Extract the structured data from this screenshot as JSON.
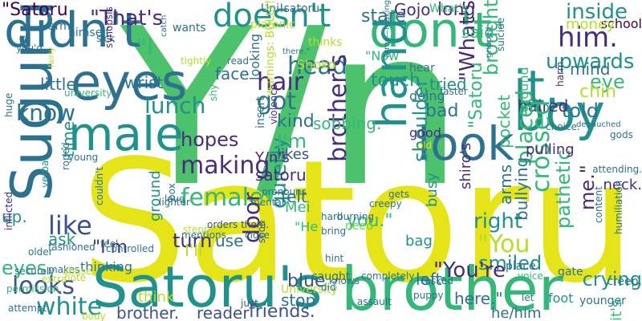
{
  "palette": {
    "background": "#ffffff",
    "yellow": "#e4e419",
    "yellow_green": "#b5de2b",
    "light_green": "#6ece58",
    "green": "#4cc26c",
    "teal_green": "#35b779",
    "teal": "#21918c",
    "blue_teal": "#2c728e",
    "blue": "#3b528b",
    "indigo": "#472d7b",
    "purple": "#440154"
  },
  "words": [
    {
      "text": "Y/n",
      "color": "#4cc26c"
    },
    {
      "text": "Satoru",
      "color": "#e4e419"
    },
    {
      "text": "Satoru's",
      "color": "#21918c"
    },
    {
      "text": "brother",
      "color": "#35b779"
    },
    {
      "text": "didn't",
      "color": "#2c728e"
    },
    {
      "text": "don't",
      "color": "#35b779"
    },
    {
      "text": "doesn't",
      "color": "#21918c"
    },
    {
      "text": "eyes",
      "color": "#2c728e"
    },
    {
      "text": "male",
      "color": "#21918c"
    },
    {
      "text": "boy",
      "color": "#21918c"
    },
    {
      "text": "it.",
      "color": "#21918c"
    },
    {
      "text": "look",
      "color": "#2c728e"
    },
    {
      "text": "hand",
      "color": "#21918c"
    },
    {
      "text": "Suguru",
      "color": "#2c728e"
    },
    {
      "text": "making",
      "color": "#472d7b"
    },
    {
      "text": "female",
      "color": "#35b779"
    },
    {
      "text": "looks",
      "color": "#3b528b"
    },
    {
      "text": "white",
      "color": "#21918c"
    },
    {
      "text": "like",
      "color": "#3b528b"
    },
    {
      "text": "hair",
      "color": "#472d7b"
    },
    {
      "text": "got",
      "color": "#2c728e"
    },
    {
      "text": "head",
      "color": "#2c728e"
    },
    {
      "text": "lunch",
      "color": "#21918c"
    },
    {
      "text": "know",
      "color": "#2c728e"
    },
    {
      "text": "\"That's",
      "color": "#472d7b"
    },
    {
      "text": "\"Satoru",
      "color": "#440154"
    },
    {
      "text": "\"I",
      "color": "#35b779"
    },
    {
      "text": "him.",
      "color": "#472d7b"
    },
    {
      "text": "inside",
      "color": "#21918c"
    },
    {
      "text": "upwards",
      "color": "#21918c"
    },
    {
      "text": "mind",
      "color": "#2c728e"
    },
    {
      "text": "eye",
      "color": "#35b779"
    },
    {
      "text": "chin",
      "color": "#b5de2b"
    },
    {
      "text": "told",
      "color": "#2c728e"
    },
    {
      "text": "haired",
      "color": "#472d7b"
    },
    {
      "text": "\"What's",
      "color": "#472d7b"
    },
    {
      "text": "brought",
      "color": "#35b779"
    },
    {
      "text": "placed",
      "color": "#35b779"
    },
    {
      "text": "shoulder",
      "color": "#21918c"
    },
    {
      "text": "brother's",
      "color": "#472d7b"
    },
    {
      "text": "right",
      "color": "#21918c"
    },
    {
      "text": "\"You",
      "color": "#b5de2b"
    },
    {
      "text": "crossed",
      "color": "#35b779"
    },
    {
      "text": "pathetic",
      "color": "#35b779"
    },
    {
      "text": "me.\"",
      "color": "#472d7b"
    },
    {
      "text": "crying",
      "color": "#21918c"
    },
    {
      "text": "smiled",
      "color": "#21918c"
    },
    {
      "text": "arms",
      "color": "#2c728e"
    },
    {
      "text": "bullying",
      "color": "#2c728e"
    },
    {
      "text": "door",
      "color": "#472d7b"
    },
    {
      "text": "quietly",
      "color": "#21918c"
    },
    {
      "text": "turn",
      "color": "#472d7b"
    },
    {
      "text": "hopes",
      "color": "#472d7b"
    },
    {
      "text": "I'm",
      "color": "#35b779"
    },
    {
      "text": "kind",
      "color": "#2c728e"
    },
    {
      "text": "stop",
      "color": "#2c728e"
    },
    {
      "text": "blue",
      "color": "#3b528b"
    },
    {
      "text": "friends.",
      "color": "#3b528b"
    },
    {
      "text": "reader",
      "color": "#3b528b"
    },
    {
      "text": "brother.",
      "color": "#3b528b"
    },
    {
      "text": "Gojo",
      "color": "#472d7b"
    },
    {
      "text": "long",
      "color": "#472d7b"
    },
    {
      "text": "said",
      "color": "#35b779"
    },
    {
      "text": "tried",
      "color": "#21918c"
    },
    {
      "text": "touch",
      "color": "#21918c"
    },
    {
      "text": "bad",
      "color": "#2c728e"
    },
    {
      "text": "face",
      "color": "#2c728e"
    },
    {
      "text": "wrist",
      "color": "#2c728e"
    },
    {
      "text": "little",
      "color": "#2c728e"
    },
    {
      "text": "time",
      "color": "#21918c"
    },
    {
      "text": "ask",
      "color": "#21918c"
    },
    {
      "text": "up.",
      "color": "#21918c"
    },
    {
      "text": "eyes.",
      "color": "#35b779"
    },
    {
      "text": "use",
      "color": "#2c728e"
    },
    {
      "text": "I'll",
      "color": "#b5de2b"
    },
    {
      "text": "\"I'm",
      "color": "#472d7b"
    },
    {
      "text": "ground",
      "color": "#21918c"
    },
    {
      "text": "school",
      "color": "#440154"
    },
    {
      "text": "money",
      "color": "#b5de2b"
    },
    {
      "text": "satoru",
      "color": "#472d7b"
    },
    {
      "text": "Y/n's",
      "color": "#472d7b"
    },
    {
      "text": "sobbing.",
      "color": "#35b779"
    },
    {
      "text": "felt",
      "color": "#2c728e"
    },
    {
      "text": "likes",
      "color": "#3b528b"
    },
    {
      "text": "Mei",
      "color": "#35b779"
    },
    {
      "text": "\"He",
      "color": "#35b779"
    },
    {
      "text": "you.\"",
      "color": "#35b779"
    },
    {
      "text": "bag",
      "color": "#21918c"
    },
    {
      "text": "busy",
      "color": "#21918c"
    },
    {
      "text": "\"You're",
      "color": "#472d7b"
    },
    {
      "text": "here.\"",
      "color": "#2c728e"
    },
    {
      "text": "left",
      "color": "#2c728e"
    },
    {
      "text": "it's",
      "color": "#35b779"
    },
    {
      "text": "neck.",
      "color": "#472d7b"
    },
    {
      "text": "pulling",
      "color": "#472d7b"
    },
    {
      "text": "shiro's",
      "color": "#472d7b"
    },
    {
      "text": "good",
      "color": "#472d7b"
    },
    {
      "text": "need",
      "color": "#6ece58"
    },
    {
      "text": "looking",
      "color": "#2c728e"
    },
    {
      "text": "thinking",
      "color": "#2c728e"
    },
    {
      "text": "Shoko",
      "color": "#b5de2b"
    },
    {
      "text": "\"Now",
      "color": "#35b779"
    },
    {
      "text": "doing",
      "color": "#2c728e"
    },
    {
      "text": "stare",
      "color": "#2c728e"
    },
    {
      "text": "\"Satoru",
      "color": "#35b779"
    },
    {
      "text": "pocket",
      "color": "#35b779"
    },
    {
      "text": "ground",
      "color": "#35b779"
    },
    {
      "text": "What's",
      "color": "#35b779"
    },
    {
      "text": "Uni!satoru",
      "color": "#2c728e"
    },
    {
      "text": "platonic",
      "color": "#b5de2b"
    },
    {
      "text": "wants",
      "color": "#2c728e"
    },
    {
      "text": "himself.",
      "color": "#2c728e"
    },
    {
      "text": "arm",
      "color": "#2c728e"
    },
    {
      "text": "sick",
      "color": "#2c728e"
    },
    {
      "text": "tightly",
      "color": "#b5de2b"
    },
    {
      "text": "read",
      "color": "#2c728e"
    },
    {
      "text": "hear",
      "color": "#2c728e"
    },
    {
      "text": "thinks",
      "color": "#b5de2b"
    },
    {
      "text": "choice.",
      "color": "#2c728e"
    },
    {
      "text": "gods",
      "color": "#2c728e"
    },
    {
      "text": "harm.",
      "color": "#472d7b"
    },
    {
      "text": "faster",
      "color": "#2c728e"
    },
    {
      "text": "suicide",
      "color": "#2c728e"
    },
    {
      "text": "gripped",
      "color": "#2c728e"
    },
    {
      "text": "debauched",
      "color": "#2c728e"
    },
    {
      "text": "arms—making",
      "color": "#2c728e"
    },
    {
      "text": "old",
      "color": "#e4e419"
    },
    {
      "text": "insert",
      "color": "#2c728e"
    },
    {
      "text": "shy",
      "color": "#35b779"
    },
    {
      "text": "lighter",
      "color": "#2c728e"
    },
    {
      "text": "controlled",
      "color": "#2c728e"
    },
    {
      "text": "box",
      "color": "#2c728e"
    },
    {
      "text": "mentions",
      "color": "#2c728e"
    },
    {
      "text": "pronouns",
      "color": "#2c728e"
    },
    {
      "text": "mental",
      "color": "#2c728e"
    },
    {
      "text": "gets",
      "color": "#2c728e"
    },
    {
      "text": "creepy",
      "color": "#2c728e"
    },
    {
      "text": "older",
      "color": "#2c728e"
    },
    {
      "text": "roped",
      "color": "#2c728e"
    },
    {
      "text": "verbal",
      "color": "#21918c"
    },
    {
      "text": "couldn't",
      "color": "#2c728e"
    },
    {
      "text": "huge",
      "color": "#2c728e"
    },
    {
      "text": "university",
      "color": "#35b779"
    },
    {
      "text": "you'd",
      "color": "#2c728e"
    },
    {
      "text": "fairly",
      "color": "#b5de2b"
    },
    {
      "text": "warnings: BULLY!",
      "color": "#b5de2b"
    },
    {
      "text": "synopsis",
      "color": "#472d7b"
    },
    {
      "text": "catch",
      "color": "#2c728e"
    },
    {
      "text": "there.\"",
      "color": "#2c728e"
    },
    {
      "text": "violence",
      "color": "#472d7b"
    },
    {
      "text": "inflicted",
      "color": "#472d7b"
    },
    {
      "text": "permission.",
      "color": "#35b779"
    },
    {
      "text": "securely",
      "color": "#2c728e"
    },
    {
      "text": "fashioned",
      "color": "#2c728e"
    },
    {
      "text": "extra",
      "color": "#b5de2b"
    },
    {
      "text": "makes",
      "color": "#2c728e"
    },
    {
      "text": "attempt",
      "color": "#2c728e"
    },
    {
      "text": "abuse",
      "color": "#b5de2b"
    },
    {
      "text": "body",
      "color": "#b5de2b"
    },
    {
      "text": "note",
      "color": "#b5de2b"
    },
    {
      "text": "love",
      "color": "#2c728e"
    },
    {
      "text": "feel",
      "color": "#2c728e"
    },
    {
      "text": "think",
      "color": "#b5de2b"
    },
    {
      "text": "stepped",
      "color": "#b5de2b"
    },
    {
      "text": "orders them.",
      "color": "#3b528b"
    },
    {
      "text": "just",
      "color": "#3b528b"
    },
    {
      "text": "soon",
      "color": "#3b528b"
    },
    {
      "text": "close",
      "color": "#2c728e"
    },
    {
      "text": "University",
      "color": "#b5de2b"
    },
    {
      "text": "caught",
      "color": "#2c728e"
    },
    {
      "text": "knows",
      "color": "#2c728e"
    },
    {
      "text": "hard",
      "color": "#2c728e"
    },
    {
      "text": "bring",
      "color": "#2c728e"
    },
    {
      "text": "burning",
      "color": "#2c728e"
    },
    {
      "text": "hint",
      "color": "#2c728e"
    },
    {
      "text": "did",
      "color": "#2c728e"
    },
    {
      "text": "tasked",
      "color": "#2c728e"
    },
    {
      "text": "assault",
      "color": "#2c728e"
    },
    {
      "text": "puppy",
      "color": "#2c728e"
    },
    {
      "text": "foot",
      "color": "#21918c"
    },
    {
      "text": "he/him",
      "color": "#2c728e"
    },
    {
      "text": "younger",
      "color": "#2c728e"
    },
    {
      "text": "creep.",
      "color": "#2c728e"
    },
    {
      "text": "voice",
      "color": "#35b779"
    },
    {
      "text": "let",
      "color": "#2c728e"
    },
    {
      "text": "place",
      "color": "#2c728e"
    },
    {
      "text": "gate",
      "color": "#2c728e"
    },
    {
      "text": "content",
      "color": "#2c728e"
    },
    {
      "text": "humiliation",
      "color": "#2c728e"
    },
    {
      "text": "attending.",
      "color": "#2c728e"
    },
    {
      "text": "completely",
      "color": "#2c728e"
    },
    {
      "text": "young",
      "color": "#2c728e"
    },
    {
      "text": "au",
      "color": "#2c728e"
    },
    {
      "text": "x",
      "color": "#2c728e"
    }
  ]
}
